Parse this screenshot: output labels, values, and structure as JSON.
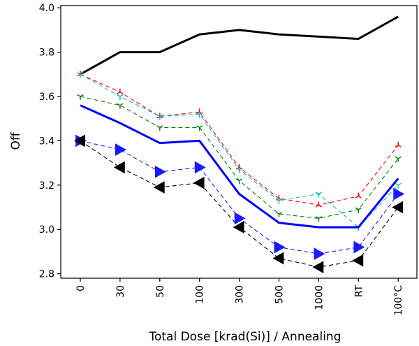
{
  "chart_data": {
    "type": "line",
    "title": "",
    "xlabel": "Total Dose [krad(Si)] / Annealing",
    "ylabel": "Off",
    "categories": [
      "0",
      "30",
      "50",
      "100",
      "300",
      "500",
      "1000",
      "RT",
      "100°C"
    ],
    "ylim": [
      2.78,
      4.01
    ],
    "yticks": [
      "2.8",
      "3.0",
      "3.2",
      "3.4",
      "3.6",
      "3.8",
      "4.0"
    ],
    "grid": false,
    "legend": "none",
    "series": [
      {
        "values": [
          3.7,
          3.8,
          3.8,
          3.88,
          3.9,
          3.88,
          3.87,
          3.86,
          3.96
        ],
        "color": "#000000",
        "style": "solid-thick",
        "marker": "none"
      },
      {
        "values": [
          3.7,
          3.62,
          3.51,
          3.53,
          3.28,
          3.14,
          3.11,
          3.15,
          3.38
        ],
        "color": "#ff0000",
        "style": "dashed",
        "marker": "tri-down"
      },
      {
        "values": [
          3.7,
          3.6,
          3.51,
          3.52,
          3.27,
          3.13,
          3.16,
          3.01,
          3.2
        ],
        "color": "#00bfbf",
        "style": "dashed",
        "marker": "tri-up"
      },
      {
        "values": [
          3.6,
          3.56,
          3.46,
          3.46,
          3.22,
          3.07,
          3.05,
          3.09,
          3.32
        ],
        "color": "#008000",
        "style": "dashed",
        "marker": "tri-up"
      },
      {
        "values": [
          3.56,
          3.48,
          3.39,
          3.4,
          3.16,
          3.03,
          3.01,
          3.01,
          3.23
        ],
        "color": "#0000ff",
        "style": "solid-thick",
        "marker": "none"
      },
      {
        "values": [
          3.4,
          3.36,
          3.26,
          3.28,
          3.05,
          2.92,
          2.89,
          2.92,
          3.16
        ],
        "color": "#1a1aff",
        "style": "dashed",
        "marker": "triangle-right"
      },
      {
        "values": [
          3.4,
          3.28,
          3.19,
          3.21,
          3.01,
          2.87,
          2.83,
          2.86,
          3.1
        ],
        "color": "#000000",
        "style": "dashed",
        "marker": "triangle-left"
      }
    ]
  }
}
